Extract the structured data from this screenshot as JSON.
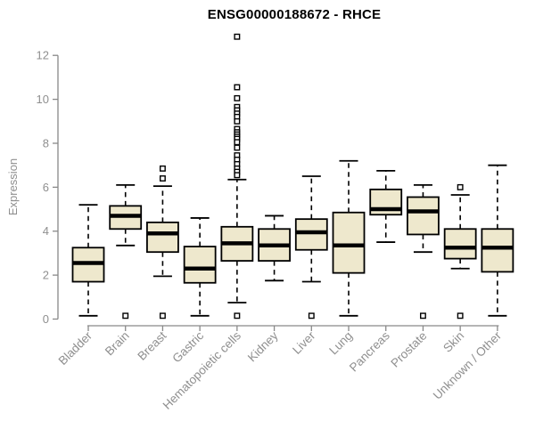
{
  "chart_data": {
    "type": "boxplot",
    "title": "ENSG00000188672 - RHCE",
    "ylabel": "Expression",
    "xlabel": "",
    "ylim": [
      0,
      13.2
    ],
    "yticks": [
      0,
      2,
      4,
      6,
      8,
      10,
      12
    ],
    "grid": false,
    "legend_position": "none",
    "categories": [
      "Bladder",
      "Brain",
      "Breast",
      "Gastric",
      "Hematopoietic cells",
      "Kidney",
      "Liver",
      "Lung",
      "Pancreas",
      "Prostate",
      "Skin",
      "Unknown / Other"
    ],
    "boxes": [
      {
        "category": "Bladder",
        "whisker_low": 0.15,
        "q1": 1.7,
        "median": 2.55,
        "q3": 3.25,
        "whisker_high": 5.2,
        "outliers": []
      },
      {
        "category": "Brain",
        "whisker_low": 3.35,
        "q1": 4.1,
        "median": 4.7,
        "q3": 5.15,
        "whisker_high": 6.1,
        "outliers": [
          0.15
        ]
      },
      {
        "category": "Breast",
        "whisker_low": 1.95,
        "q1": 3.05,
        "median": 3.9,
        "q3": 4.4,
        "whisker_high": 6.05,
        "outliers": [
          6.85,
          6.4,
          0.15
        ]
      },
      {
        "category": "Gastric",
        "whisker_low": 0.15,
        "q1": 1.65,
        "median": 2.3,
        "q3": 3.3,
        "whisker_high": 4.6,
        "outliers": []
      },
      {
        "category": "Hematopoietic cells",
        "whisker_low": 0.75,
        "q1": 2.65,
        "median": 3.45,
        "q3": 4.2,
        "whisker_high": 6.35,
        "outliers": [
          12.85,
          10.55,
          10.05,
          9.65,
          9.5,
          9.35,
          9.2,
          9.0,
          8.65,
          8.5,
          8.4,
          8.3,
          8.2,
          8.05,
          7.8,
          7.45,
          7.25,
          7.05,
          6.85,
          6.7,
          6.55,
          0.15
        ]
      },
      {
        "category": "Kidney",
        "whisker_low": 1.75,
        "q1": 2.65,
        "median": 3.35,
        "q3": 4.1,
        "whisker_high": 4.7,
        "outliers": []
      },
      {
        "category": "Liver",
        "whisker_low": 1.7,
        "q1": 3.15,
        "median": 3.95,
        "q3": 4.55,
        "whisker_high": 6.5,
        "outliers": [
          0.15
        ]
      },
      {
        "category": "Lung",
        "whisker_low": 0.15,
        "q1": 2.1,
        "median": 3.35,
        "q3": 4.85,
        "whisker_high": 7.2,
        "outliers": []
      },
      {
        "category": "Pancreas",
        "whisker_low": 3.5,
        "q1": 4.75,
        "median": 5.0,
        "q3": 5.9,
        "whisker_high": 6.75,
        "outliers": []
      },
      {
        "category": "Prostate",
        "whisker_low": 3.05,
        "q1": 3.85,
        "median": 4.9,
        "q3": 5.55,
        "whisker_high": 6.1,
        "outliers": [
          0.15
        ]
      },
      {
        "category": "Skin",
        "whisker_low": 2.3,
        "q1": 2.75,
        "median": 3.25,
        "q3": 4.1,
        "whisker_high": 5.65,
        "outliers": [
          6.0,
          0.15
        ]
      },
      {
        "category": "Unknown / Other",
        "whisker_low": 0.15,
        "q1": 2.15,
        "median": 3.25,
        "q3": 4.1,
        "whisker_high": 7.0,
        "outliers": []
      }
    ]
  },
  "colors": {
    "box_fill": "#EEE8CD",
    "box_border": "#000000",
    "median": "#000000",
    "whisker": "#000000",
    "outlier_fill": "#ffffff",
    "axis": "#898989",
    "tick_label": "#8f8f8f",
    "title": "#000000",
    "background": "#ffffff"
  }
}
